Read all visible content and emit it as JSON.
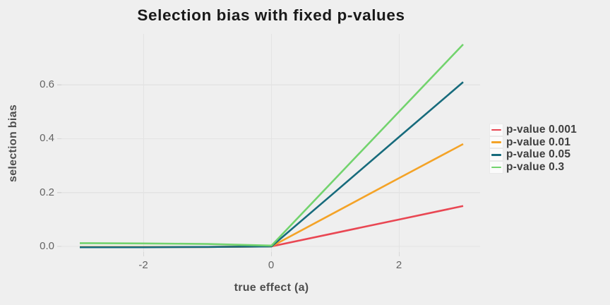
{
  "title": "Selection bias with fixed p-values",
  "axes": {
    "x": {
      "title": "true effect (a)",
      "tick_labels": [
        "-2",
        "0",
        "2"
      ]
    },
    "y": {
      "title": "selection bias",
      "tick_labels": [
        "0.0",
        "0.2",
        "0.4",
        "0.6"
      ]
    }
  },
  "chart_data": {
    "type": "line",
    "title": "Selection bias with fixed p-values",
    "xlabel": "true effect (a)",
    "ylabel": "selection bias",
    "x": [
      -3,
      -2,
      -1,
      0,
      1,
      2,
      3
    ],
    "series": [
      {
        "name": "p-value 0.001",
        "color": "#E94753",
        "values": [
          -0.002,
          -0.002,
          -0.002,
          0.0,
          0.05,
          0.1,
          0.15
        ]
      },
      {
        "name": "p-value 0.01",
        "color": "#F4A327",
        "values": [
          -0.002,
          -0.002,
          -0.002,
          0.0,
          0.127,
          0.254,
          0.38
        ]
      },
      {
        "name": "p-value 0.05",
        "color": "#176B7C",
        "values": [
          -0.003,
          -0.003,
          -0.002,
          0.0,
          0.203,
          0.407,
          0.61
        ]
      },
      {
        "name": "p-value 0.3",
        "color": "#72D36D",
        "values": [
          0.012,
          0.011,
          0.009,
          0.003,
          0.252,
          0.501,
          0.75
        ]
      }
    ],
    "x_ticks": [
      -2,
      0,
      2
    ],
    "y_ticks": [
      0,
      0.2,
      0.4,
      0.6
    ],
    "xlim": [
      -3.29,
      3.27
    ],
    "ylim": [
      -0.022,
      0.789
    ],
    "grid": true,
    "legend_position": "right",
    "background_color": "#EFEFEF",
    "gridline_color": "#E3E3E3",
    "tick_mark_color": "#D6D6D6"
  }
}
